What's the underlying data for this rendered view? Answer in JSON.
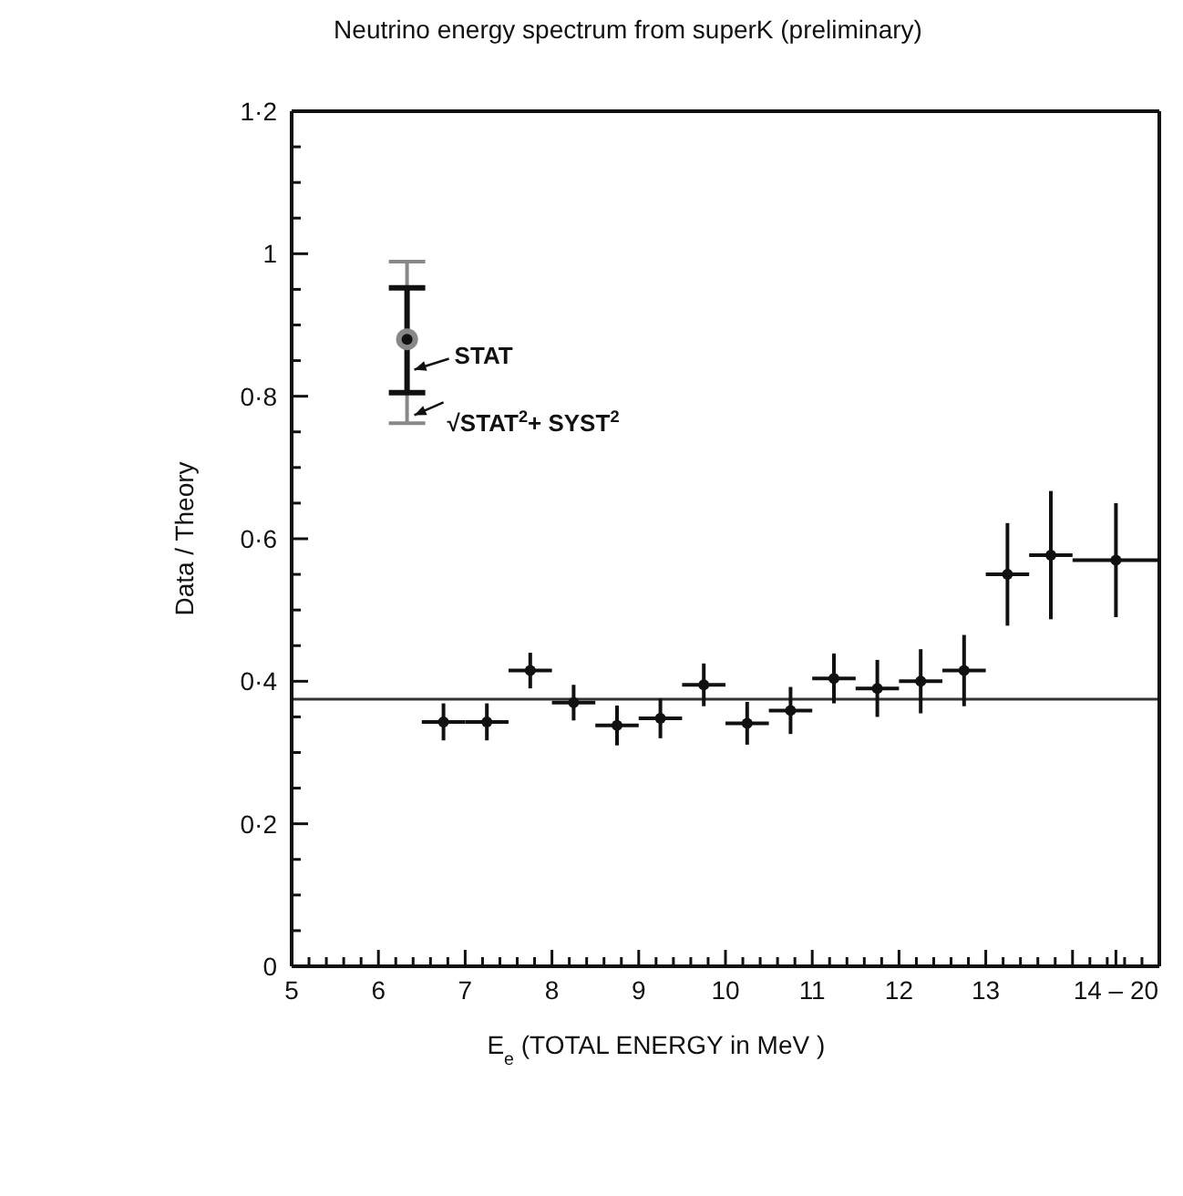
{
  "chart_data": {
    "type": "scatter",
    "title": "Neutrino energy spectrum from superK (preliminary)",
    "xlabel": "E$_{e}$ (TOTAL ENERGY in MeV )",
    "ylabel": "Data / Theory",
    "xlim": [
      5,
      15
    ],
    "ylim": [
      0,
      1.2
    ],
    "xticks": [
      5,
      6,
      7,
      8,
      9,
      10,
      11,
      12,
      13,
      {
        "value": 14,
        "label": null
      },
      {
        "value": 14.5,
        "label": "14 – 20"
      },
      {
        "value": 5.2,
        "label": null
      },
      {
        "value": 5.4,
        "label": null
      },
      {
        "value": 5.6,
        "label": null
      },
      {
        "value": 5.8,
        "label": null
      },
      {
        "value": 6.2,
        "label": null
      },
      {
        "value": 6.4,
        "label": null
      },
      {
        "value": 6.6,
        "label": null
      },
      {
        "value": 6.8,
        "label": null
      },
      {
        "value": 7.2,
        "label": null
      },
      {
        "value": 7.4,
        "label": null
      },
      {
        "value": 7.6,
        "label": null
      },
      {
        "value": 7.8,
        "label": null
      },
      {
        "value": 8.2,
        "label": null
      },
      {
        "value": 8.4,
        "label": null
      },
      {
        "value": 8.6,
        "label": null
      },
      {
        "value": 8.8,
        "label": null
      },
      {
        "value": 9.2,
        "label": null
      },
      {
        "value": 9.4,
        "label": null
      },
      {
        "value": 9.6,
        "label": null
      },
      {
        "value": 9.8,
        "label": null
      },
      {
        "value": 10.2,
        "label": null
      },
      {
        "value": 10.4,
        "label": null
      },
      {
        "value": 10.6,
        "label": null
      },
      {
        "value": 10.8,
        "label": null
      },
      {
        "value": 11.2,
        "label": null
      },
      {
        "value": 11.4,
        "label": null
      },
      {
        "value": 11.6,
        "label": null
      },
      {
        "value": 11.8,
        "label": null
      },
      {
        "value": 12.2,
        "label": null
      },
      {
        "value": 12.4,
        "label": null
      },
      {
        "value": 12.6,
        "label": null
      },
      {
        "value": 12.8,
        "label": null
      },
      {
        "value": 13.2,
        "label": null
      },
      {
        "value": 13.4,
        "label": null
      },
      {
        "value": 13.6,
        "label": null
      },
      {
        "value": 13.8,
        "label": null
      },
      {
        "value": 14.2,
        "label": null
      },
      {
        "value": 14.4,
        "label": null
      },
      {
        "value": 14.6,
        "label": null
      },
      {
        "value": 14.8,
        "label": null
      }
    ],
    "yticks": [
      0,
      {
        "value": 0.2,
        "label": "0·2"
      },
      {
        "value": 0.4,
        "label": "0·4"
      },
      {
        "value": 0.6,
        "label": "0·6"
      },
      {
        "value": 0.8,
        "label": "0·8"
      },
      1,
      {
        "value": 1.2,
        "label": "1·2"
      },
      {
        "value": 0.05,
        "label": null
      },
      {
        "value": 0.1,
        "label": null
      },
      {
        "value": 0.15,
        "label": null
      },
      {
        "value": 0.25,
        "label": null
      },
      {
        "value": 0.3,
        "label": null
      },
      {
        "value": 0.35,
        "label": null
      },
      {
        "value": 0.45,
        "label": null
      },
      {
        "value": 0.5,
        "label": null
      },
      {
        "value": 0.55,
        "label": null
      },
      {
        "value": 0.65,
        "label": null
      },
      {
        "value": 0.7,
        "label": null
      },
      {
        "value": 0.75,
        "label": null
      },
      {
        "value": 0.85,
        "label": null
      },
      {
        "value": 0.9,
        "label": null
      },
      {
        "value": 0.95,
        "label": null
      },
      {
        "value": 1.05,
        "label": null
      },
      {
        "value": 1.1,
        "label": null
      },
      {
        "value": 1.15,
        "label": null
      }
    ],
    "marker": "circle",
    "series": [
      {
        "color": "#111111",
        "x": [
          6.75,
          7.25,
          7.75,
          8.25,
          8.75,
          9.25,
          9.75,
          10.25,
          10.75,
          11.25,
          11.75,
          12.25,
          12.75,
          13.25,
          13.75,
          14.5
        ],
        "values": [
          0.343,
          0.343,
          0.415,
          0.37,
          0.338,
          0.348,
          0.395,
          0.341,
          0.359,
          0.404,
          0.39,
          0.4,
          0.415,
          0.55,
          0.577,
          0.57
        ],
        "errors": [
          0.026,
          0.026,
          0.025,
          0.025,
          0.028,
          0.028,
          0.03,
          0.03,
          0.033,
          0.035,
          0.04,
          0.045,
          0.05,
          0.072,
          0.09,
          0.08
        ],
        "xerrors": [
          0.25,
          0.25,
          0.25,
          0.25,
          0.25,
          0.25,
          0.25,
          0.25,
          0.25,
          0.25,
          0.25,
          0.25,
          0.25,
          0.25,
          0.25,
          0.5
        ]
      },
      {
        "color": "#888888",
        "x": [
          6.33
        ],
        "values": [
          0.88
        ],
        "errors": [
          [
            0.762,
            0.989
          ]
        ]
      },
      {
        "color": "#111111",
        "x": [
          6.33
        ],
        "values": [
          0.88
        ],
        "errors": [
          [
            0.805,
            0.952
          ]
        ]
      }
    ],
    "ref_lines": [
      {
        "axis": "y",
        "value": 0.375,
        "color": "#333333"
      }
    ],
    "annotations": [
      {
        "text": "STAT",
        "x": 6.33,
        "y": 0.84
      },
      {
        "text": "√STAT$^{2}$+ SYST$^{2}$",
        "x": 6.33,
        "y": 0.776
      }
    ]
  }
}
